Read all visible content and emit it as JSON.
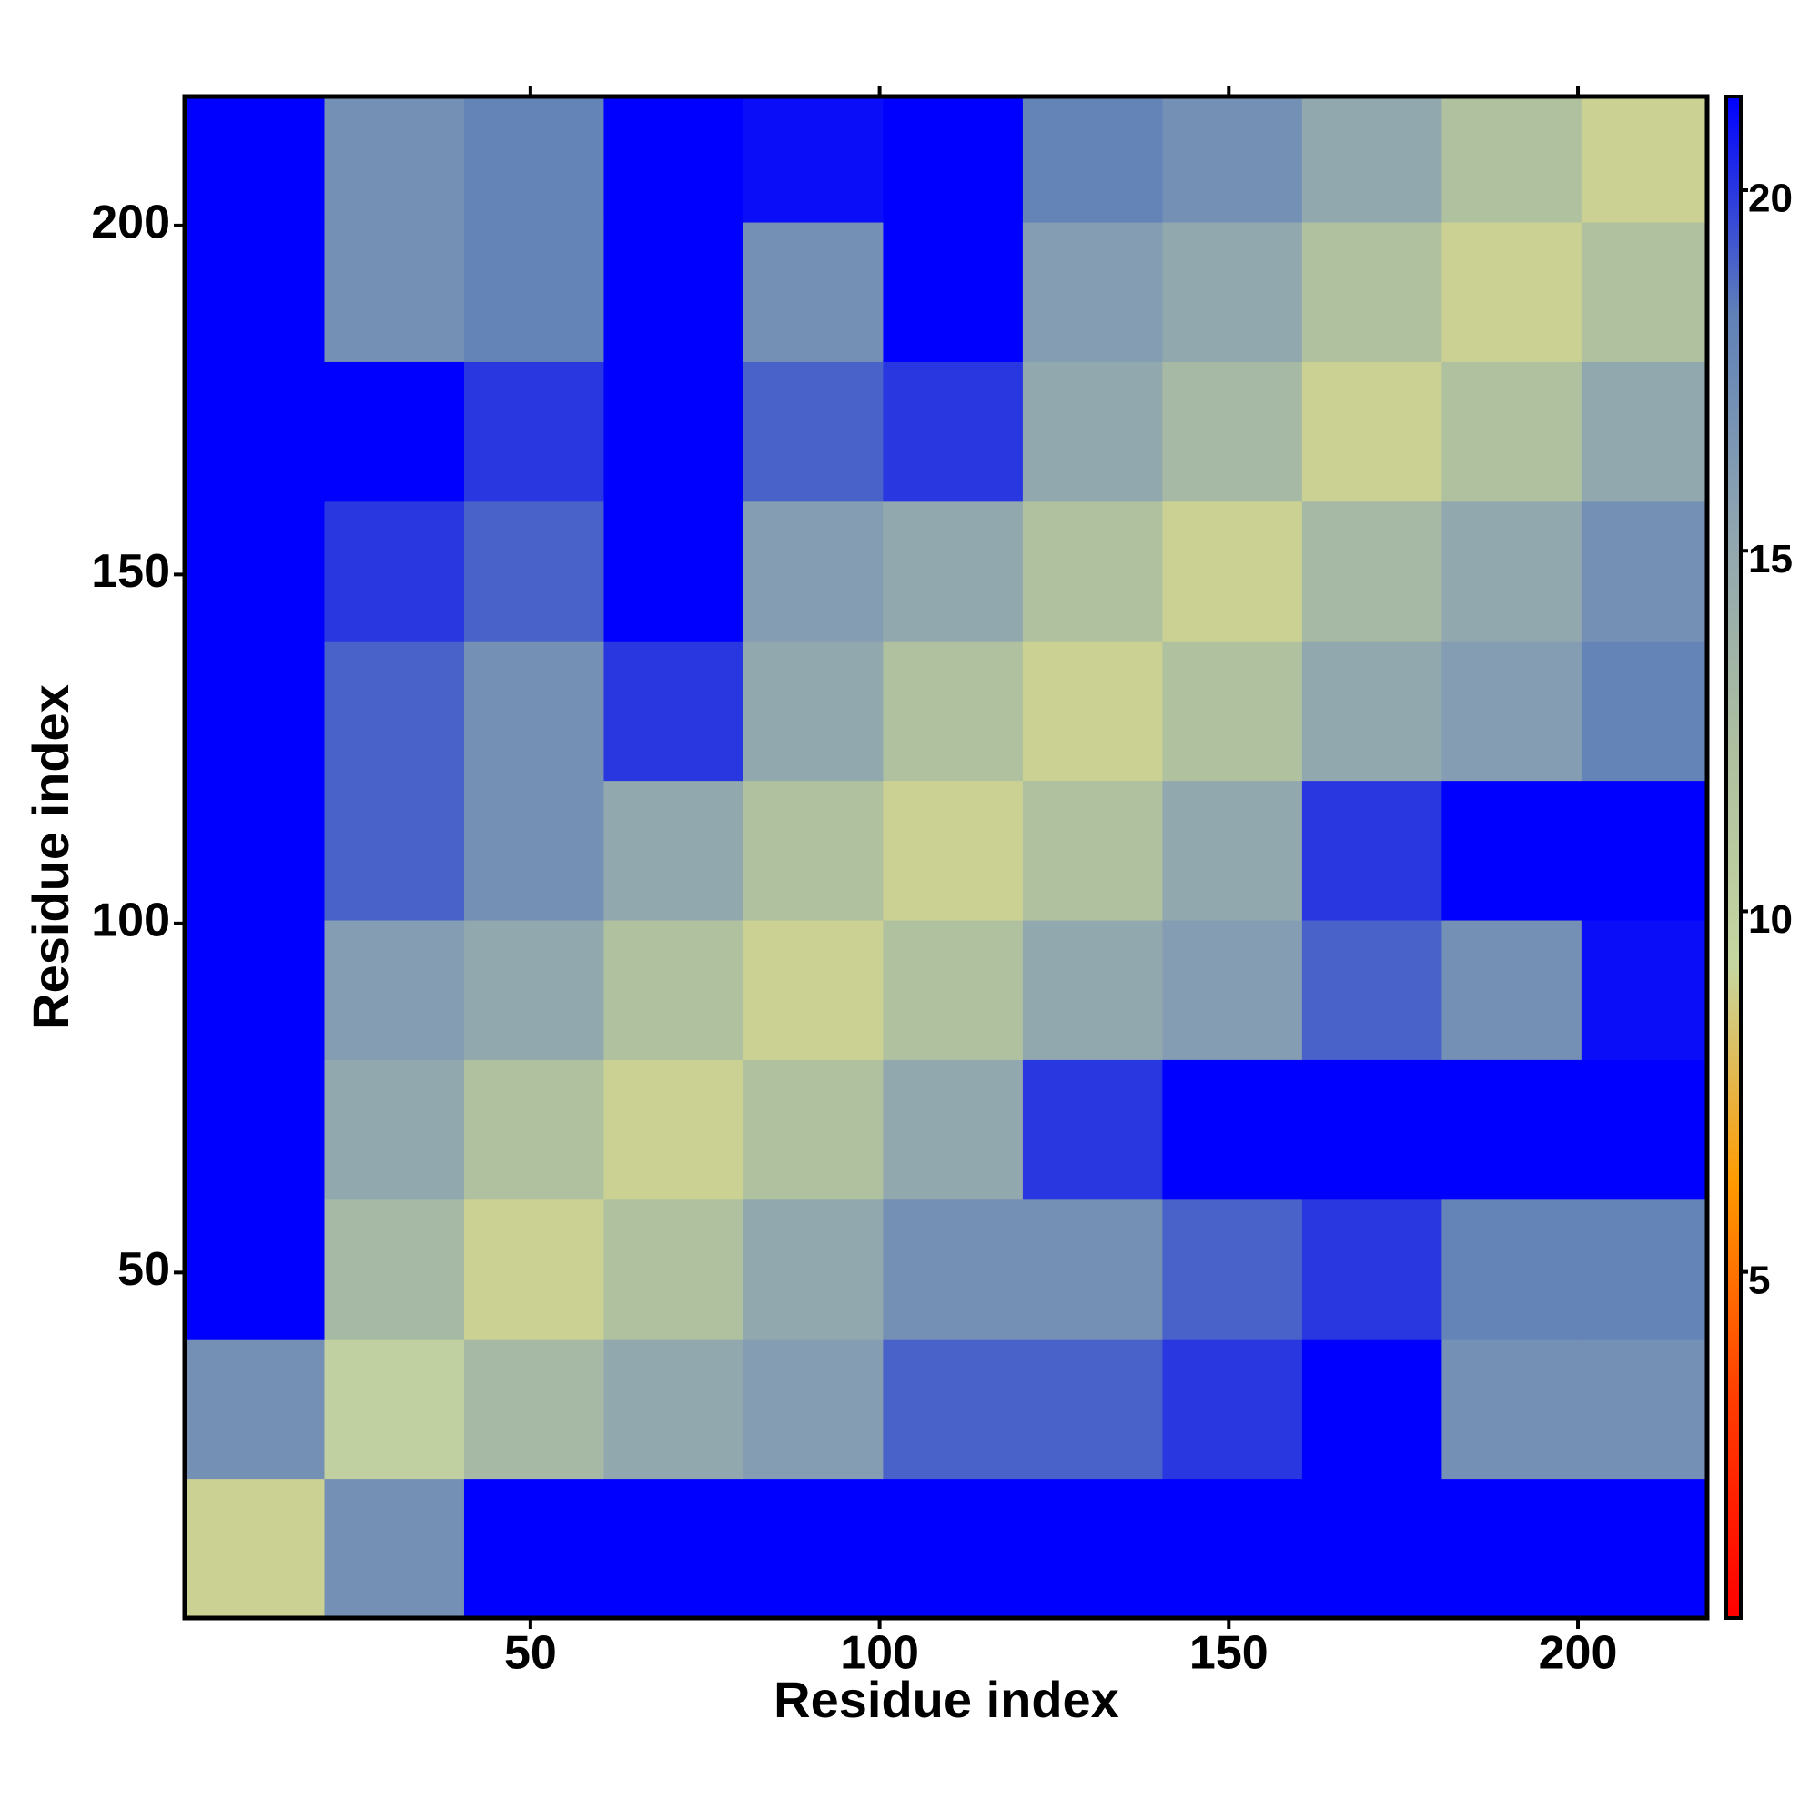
{
  "chart_data": {
    "type": "heatmap",
    "x_label": "Residue index",
    "y_label": "Residue index",
    "x_bins": [
      0.5,
      20.5,
      40.5,
      60.5,
      80.5,
      100.5,
      120.5,
      140.5,
      160.5,
      180.5,
      200.5,
      218.5
    ],
    "y_bins": [
      0.5,
      20.5,
      40.5,
      60.5,
      80.5,
      100.5,
      120.5,
      140.5,
      160.5,
      180.5,
      200.5,
      218.5
    ],
    "z": [
      [
        9,
        17,
        25,
        25,
        25,
        25,
        25,
        25,
        25,
        25,
        25
      ],
      [
        17,
        10,
        13,
        15,
        16,
        19,
        19,
        20,
        22,
        17,
        17
      ],
      [
        25,
        13,
        9,
        12,
        15,
        17,
        17,
        19,
        20,
        18,
        18
      ],
      [
        25,
        15,
        12,
        9,
        12,
        15,
        20,
        22,
        25,
        22,
        25
      ],
      [
        25,
        16,
        15,
        12,
        9,
        12,
        15,
        16,
        19,
        17,
        21
      ],
      [
        25,
        19,
        17,
        15,
        12,
        9,
        12,
        15,
        20,
        22,
        25
      ],
      [
        25,
        19,
        17,
        20,
        15,
        12,
        9,
        12,
        15,
        16,
        18
      ],
      [
        25,
        20,
        19,
        22,
        16,
        15,
        12,
        9,
        13,
        15,
        17
      ],
      [
        25,
        22,
        20,
        25,
        19,
        20,
        15,
        13,
        9,
        12,
        15
      ],
      [
        25,
        17,
        18,
        22,
        17,
        22,
        16,
        15,
        12,
        9,
        12
      ],
      [
        25,
        17,
        18,
        25,
        21,
        25,
        18,
        17,
        15,
        12,
        9
      ]
    ],
    "xlim": [
      0.5,
      218.5
    ],
    "ylim": [
      0.5,
      218.5
    ],
    "xticks": [
      50,
      100,
      150,
      200
    ],
    "yticks": [
      50,
      100,
      150,
      200
    ],
    "zlim": [
      0.2,
      21.3
    ],
    "zticks": [
      5,
      10,
      15,
      20
    ],
    "colorscale": [
      "#ff0000",
      "#ff3c00",
      "#ff9a00",
      "#c6d6a0",
      "#aebfa0",
      "#8fa6b0",
      "#6080b8",
      "#0000ff"
    ]
  }
}
